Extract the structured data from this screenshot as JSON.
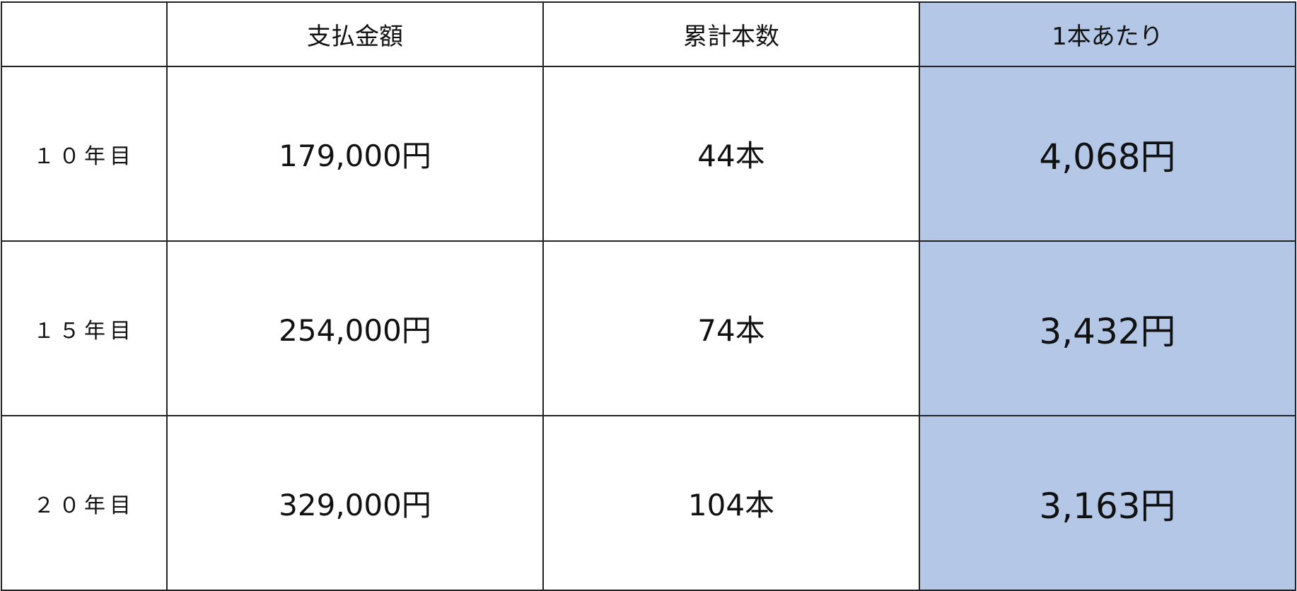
{
  "table": {
    "headers": [
      "",
      "支払金額",
      "累計本数",
      "1本あたり"
    ],
    "rows": [
      {
        "label": "１０年目",
        "payment": "179,000円",
        "count": "44本",
        "per_unit": "4,068円"
      },
      {
        "label": "１５年目",
        "payment": "254,000円",
        "count": "74本",
        "per_unit": "3,432円"
      },
      {
        "label": "２０年目",
        "payment": "329,000円",
        "count": "104本",
        "per_unit": "3,163円"
      }
    ],
    "highlight_color": "#b4c7e7"
  }
}
